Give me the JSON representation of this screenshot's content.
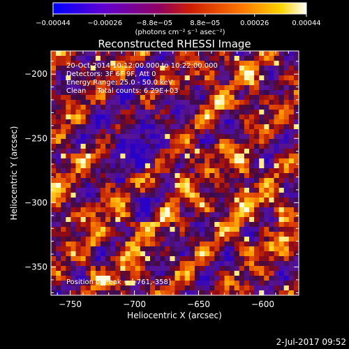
{
  "chart_data": {
    "type": "heatmap",
    "title": "Reconstructed RHESSI Image",
    "xlabel": "Heliocentric X (arcsec)",
    "ylabel": "Heliocentric Y (arcsec)",
    "xlim": [
      -765,
      -572
    ],
    "ylim": [
      -372,
      -182
    ],
    "x_ticks": [
      -750,
      -700,
      -650,
      -600
    ],
    "x_tick_labels": [
      "−750",
      "−700",
      "−650",
      "−600"
    ],
    "y_ticks": [
      -200,
      -250,
      -300,
      -350
    ],
    "y_tick_labels": [
      "−200",
      "−250",
      "−300",
      "−350"
    ],
    "colorbar": {
      "range": [
        -0.00044,
        0.00044
      ],
      "ticks": [
        -0.00044,
        -0.00026,
        -8.8e-05,
        8.8e-05,
        0.00026,
        0.00044
      ],
      "tick_labels": [
        "−0.00044",
        "−0.00026",
        "−8.8e−05",
        "8.8e−05",
        "0.00026",
        "0.00044"
      ],
      "unit_label": "(photons cm⁻² s⁻¹ asec⁻²)",
      "colors": [
        "#0000ff",
        "#8000c0",
        "#c01000",
        "#ff6000",
        "#ffd000",
        "#ffffff"
      ]
    },
    "info_lines": [
      "20-Oct-2014 10:12:00.000 to 10:22:00.000",
      "Detectors: 3F 6F 9F, Att 0",
      "Energy Range: 25.0 - 50.0 keV",
      "Clean     Total counts: 6.29E+03"
    ],
    "peak_label": "Position of Peak = [-761,-358]",
    "peak": [
      -761,
      -358
    ],
    "grid": false,
    "legend": "colorbar-top"
  },
  "footer": {
    "date": "2-Jul-2017 09:52"
  }
}
